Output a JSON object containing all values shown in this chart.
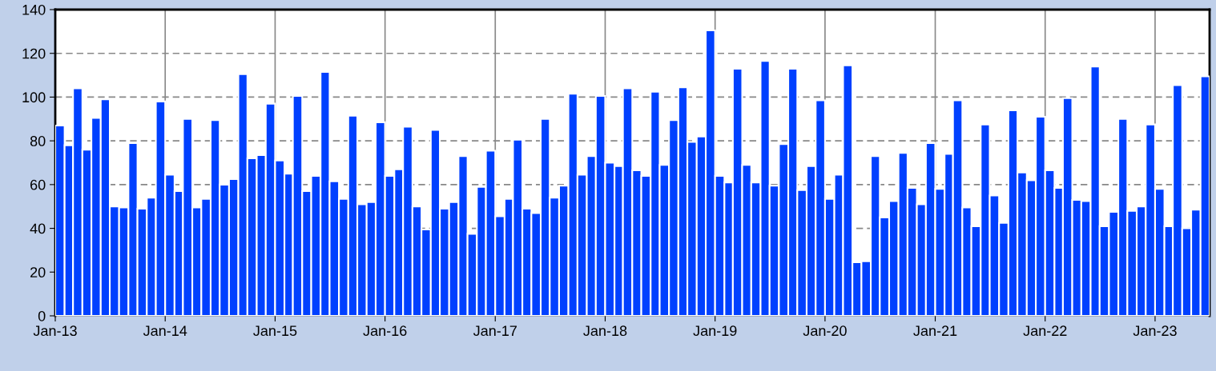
{
  "chart_data": {
    "type": "bar",
    "x": [
      "2013-01",
      "2013-02",
      "2013-03",
      "2013-04",
      "2013-05",
      "2013-06",
      "2013-07",
      "2013-08",
      "2013-09",
      "2013-10",
      "2013-11",
      "2013-12",
      "2014-01",
      "2014-02",
      "2014-03",
      "2014-04",
      "2014-05",
      "2014-06",
      "2014-07",
      "2014-08",
      "2014-09",
      "2014-10",
      "2014-11",
      "2014-12",
      "2015-01",
      "2015-02",
      "2015-03",
      "2015-04",
      "2015-05",
      "2015-06",
      "2015-07",
      "2015-08",
      "2015-09",
      "2015-10",
      "2015-11",
      "2015-12",
      "2016-01",
      "2016-02",
      "2016-03",
      "2016-04",
      "2016-05",
      "2016-06",
      "2016-07",
      "2016-08",
      "2016-09",
      "2016-10",
      "2016-11",
      "2016-12",
      "2017-01",
      "2017-02",
      "2017-03",
      "2017-04",
      "2017-05",
      "2017-06",
      "2017-07",
      "2017-08",
      "2017-09",
      "2017-10",
      "2017-11",
      "2017-12",
      "2018-01",
      "2018-02",
      "2018-03",
      "2018-04",
      "2018-05",
      "2018-06",
      "2018-07",
      "2018-08",
      "2018-09",
      "2018-10",
      "2018-11",
      "2018-12",
      "2019-01",
      "2019-02",
      "2019-03",
      "2019-04",
      "2019-05",
      "2019-06",
      "2019-07",
      "2019-08",
      "2019-09",
      "2019-10",
      "2019-11",
      "2019-12",
      "2020-01",
      "2020-02",
      "2020-03",
      "2020-04",
      "2020-05",
      "2020-06",
      "2020-07",
      "2020-08",
      "2020-09",
      "2020-10",
      "2020-11",
      "2020-12",
      "2021-01",
      "2021-02",
      "2021-03",
      "2021-04",
      "2021-05",
      "2021-06",
      "2021-07",
      "2021-08",
      "2021-09",
      "2021-10",
      "2021-11",
      "2021-12",
      "2022-01",
      "2022-02",
      "2022-03",
      "2022-04",
      "2022-05",
      "2022-06",
      "2022-07",
      "2022-08",
      "2022-09",
      "2022-10",
      "2022-11",
      "2022-12",
      "2023-01",
      "2023-02",
      "2023-03",
      "2023-04",
      "2023-05",
      "2023-06"
    ],
    "values": [
      87,
      78,
      104,
      76,
      90.5,
      99,
      50,
      49.5,
      79,
      49,
      54,
      98,
      64.5,
      57,
      90,
      49.5,
      53.5,
      89.5,
      60,
      62.5,
      110.5,
      72,
      73.5,
      97,
      71,
      65,
      100.5,
      57,
      64,
      111.5,
      61.5,
      53.5,
      91.5,
      51,
      52,
      88.5,
      64,
      67,
      86.5,
      50,
      39.5,
      85,
      49,
      52,
      73,
      37.5,
      59,
      75.5,
      45.5,
      53.5,
      80.5,
      49,
      47,
      90,
      54,
      59.5,
      101.5,
      64.5,
      73,
      100.5,
      70,
      68.5,
      104,
      66.5,
      64,
      102.5,
      69,
      89.5,
      104.5,
      79.5,
      82,
      130.5,
      64,
      61,
      113,
      69,
      61,
      116.5,
      59.5,
      78.5,
      113,
      57.5,
      68.5,
      98.5,
      53.5,
      64.5,
      114.5,
      24.5,
      25,
      73,
      45,
      52.5,
      74.5,
      58.5,
      51,
      79,
      58,
      74,
      98.5,
      49.5,
      41,
      87.5,
      55,
      42.5,
      94,
      65.5,
      62,
      91,
      66.5,
      58.5,
      99.5,
      53,
      52.5,
      114,
      41,
      47.5,
      90,
      48,
      50,
      87.5,
      58,
      41,
      105.5,
      40,
      48.5,
      109.5
    ],
    "color": "#0040ff",
    "xlim": [
      "2013-01",
      "2023-07"
    ],
    "xticks": [
      {
        "value": "2013-01",
        "label": "Jan-13"
      },
      {
        "value": "2014-01",
        "label": "Jan-14"
      },
      {
        "value": "2015-01",
        "label": "Jan-15"
      },
      {
        "value": "2016-01",
        "label": "Jan-16"
      },
      {
        "value": "2017-01",
        "label": "Jan-17"
      },
      {
        "value": "2018-01",
        "label": "Jan-18"
      },
      {
        "value": "2019-01",
        "label": "Jan-19"
      },
      {
        "value": "2020-01",
        "label": "Jan-20"
      },
      {
        "value": "2021-01",
        "label": "Jan-21"
      },
      {
        "value": "2022-01",
        "label": "Jan-22"
      },
      {
        "value": "2023-01",
        "label": "Jan-23"
      }
    ],
    "ylim": [
      0,
      140
    ],
    "yticks": [
      0,
      20,
      40,
      60,
      80,
      100,
      120,
      140
    ],
    "grid": true
  }
}
